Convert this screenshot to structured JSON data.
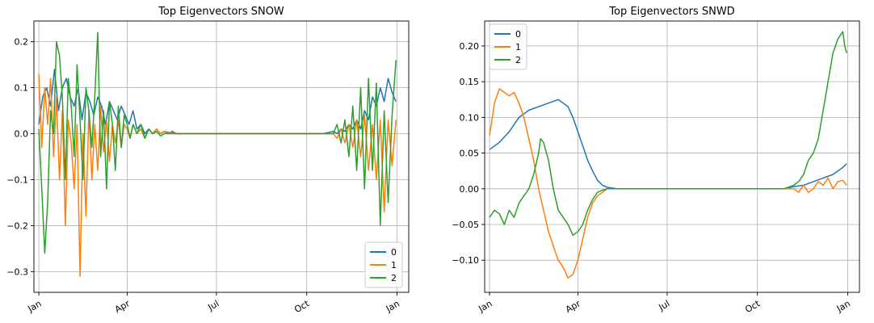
{
  "chart_data": [
    {
      "type": "line",
      "title": "Top Eigenvectors SNOW",
      "xlabel": "",
      "ylabel": "",
      "x_ticks": [
        "Jan",
        "Apr",
        "Jul",
        "Oct",
        "Jan"
      ],
      "x_tick_days": [
        0,
        90,
        181,
        273,
        365
      ],
      "xlim": [
        -5,
        377
      ],
      "ylim": [
        -0.345,
        0.245
      ],
      "yticks": [
        -0.3,
        -0.2,
        -0.1,
        0.0,
        0.1,
        0.2
      ],
      "ytick_labels": [
        "−0.3",
        "−0.2",
        "−0.1",
        "0.0",
        "0.1",
        "0.2"
      ],
      "grid": true,
      "legend": "lower-right",
      "series": [
        {
          "name": "0",
          "color": "#1f77b4",
          "x": [
            0,
            4,
            8,
            12,
            16,
            20,
            24,
            28,
            32,
            36,
            40,
            44,
            48,
            52,
            56,
            60,
            64,
            68,
            72,
            76,
            80,
            84,
            88,
            92,
            96,
            100,
            104,
            108,
            112,
            116,
            120,
            124,
            128,
            132,
            136,
            140,
            150,
            160,
            180,
            200,
            220,
            240,
            260,
            280,
            290,
            300,
            304,
            308,
            312,
            316,
            320,
            324,
            328,
            332,
            336,
            340,
            344,
            348,
            352,
            356,
            360,
            364
          ],
          "y": [
            0.02,
            0.08,
            0.1,
            0.06,
            0.14,
            0.05,
            0.1,
            0.12,
            0.08,
            0.06,
            0.1,
            0.03,
            0.09,
            0.07,
            0.04,
            0.08,
            0.06,
            0.02,
            0.07,
            0.05,
            0.03,
            0.06,
            0.04,
            0.02,
            0.05,
            0.01,
            0.02,
            0.0,
            0.01,
            0.0,
            0.01,
            0.0,
            0.005,
            0.0,
            0.005,
            0.0,
            0.0,
            0.0,
            0.0,
            0.0,
            0.0,
            0.0,
            0.0,
            0.0,
            0.0,
            0.005,
            0.0,
            0.01,
            0.005,
            0.02,
            0.01,
            0.03,
            0.01,
            0.05,
            0.03,
            0.08,
            0.06,
            0.1,
            0.07,
            0.12,
            0.09,
            0.07
          ]
        },
        {
          "name": "1",
          "color": "#ff7f0e",
          "x": [
            0,
            3,
            6,
            9,
            12,
            15,
            18,
            21,
            24,
            27,
            30,
            33,
            36,
            39,
            42,
            45,
            48,
            51,
            54,
            57,
            60,
            63,
            66,
            69,
            72,
            75,
            78,
            81,
            84,
            87,
            90,
            93,
            96,
            100,
            104,
            108,
            112,
            116,
            120,
            124,
            128,
            140,
            160,
            180,
            200,
            220,
            240,
            260,
            280,
            290,
            300,
            304,
            308,
            312,
            316,
            320,
            324,
            328,
            332,
            336,
            340,
            344,
            348,
            352,
            356,
            360,
            364
          ],
          "y": [
            0.13,
            -0.03,
            0.1,
            0.02,
            0.12,
            -0.05,
            0.08,
            -0.1,
            0.05,
            -0.2,
            0.03,
            -0.02,
            -0.12,
            0.02,
            -0.31,
            0.0,
            -0.18,
            0.05,
            -0.1,
            0.02,
            -0.08,
            0.06,
            -0.04,
            0.03,
            -0.06,
            0.02,
            -0.02,
            0.03,
            -0.03,
            0.02,
            0.01,
            -0.01,
            0.02,
            0.0,
            0.01,
            -0.01,
            0.01,
            0.0,
            0.01,
            0.0,
            0.005,
            0.0,
            0.0,
            0.0,
            0.0,
            0.0,
            0.0,
            0.0,
            0.0,
            0.0,
            0.0,
            -0.01,
            0.01,
            -0.02,
            0.02,
            -0.03,
            0.03,
            -0.05,
            0.04,
            -0.08,
            0.02,
            -0.1,
            0.03,
            -0.17,
            0.03,
            -0.07,
            0.03
          ]
        },
        {
          "name": "2",
          "color": "#2ca02c",
          "x": [
            0,
            3,
            6,
            9,
            12,
            15,
            18,
            21,
            24,
            27,
            30,
            33,
            36,
            39,
            42,
            45,
            48,
            51,
            54,
            57,
            60,
            63,
            66,
            69,
            72,
            75,
            78,
            81,
            84,
            87,
            90,
            93,
            96,
            100,
            104,
            108,
            112,
            116,
            120,
            124,
            128,
            140,
            160,
            180,
            200,
            220,
            240,
            260,
            280,
            290,
            300,
            304,
            308,
            312,
            316,
            320,
            324,
            328,
            332,
            336,
            340,
            344,
            348,
            352,
            356,
            360,
            364
          ],
          "y": [
            0.01,
            -0.12,
            -0.26,
            -0.15,
            0.05,
            0.0,
            0.2,
            0.17,
            0.08,
            -0.1,
            0.12,
            0.06,
            -0.05,
            0.15,
            0.03,
            -0.1,
            0.1,
            0.05,
            -0.03,
            0.08,
            0.22,
            -0.05,
            0.05,
            -0.12,
            0.07,
            0.02,
            -0.08,
            0.06,
            -0.03,
            0.04,
            0.02,
            -0.01,
            0.02,
            0.0,
            0.02,
            -0.01,
            0.01,
            0.0,
            0.005,
            -0.005,
            0.0,
            0.0,
            0.0,
            0.0,
            0.0,
            0.0,
            0.0,
            0.0,
            0.0,
            0.0,
            0.0,
            0.02,
            -0.02,
            0.03,
            -0.05,
            0.06,
            -0.08,
            0.1,
            -0.12,
            0.12,
            -0.08,
            0.11,
            -0.2,
            0.05,
            -0.15,
            0.04,
            0.16
          ]
        }
      ]
    },
    {
      "type": "line",
      "title": "Top Eigenvectors SNWD",
      "xlabel": "",
      "ylabel": "",
      "x_ticks": [
        "Jan",
        "Apr",
        "Jul",
        "Oct",
        "Jan"
      ],
      "x_tick_days": [
        0,
        90,
        181,
        273,
        365
      ],
      "xlim": [
        -5,
        377
      ],
      "ylim": [
        -0.145,
        0.235
      ],
      "yticks": [
        -0.1,
        -0.05,
        0.0,
        0.05,
        0.1,
        0.15,
        0.2
      ],
      "ytick_labels": [
        "−0.10",
        "−0.05",
        "0.00",
        "0.05",
        "0.10",
        "0.15",
        "0.20"
      ],
      "grid": true,
      "legend": "upper-left",
      "series": [
        {
          "name": "0",
          "color": "#1f77b4",
          "x": [
            0,
            10,
            20,
            30,
            40,
            50,
            60,
            70,
            75,
            80,
            85,
            90,
            95,
            100,
            105,
            110,
            115,
            120,
            130,
            140,
            160,
            200,
            240,
            280,
            300,
            310,
            320,
            330,
            340,
            350,
            360,
            364
          ],
          "y": [
            0.055,
            0.065,
            0.08,
            0.1,
            0.11,
            0.115,
            0.12,
            0.125,
            0.12,
            0.115,
            0.1,
            0.08,
            0.06,
            0.04,
            0.025,
            0.012,
            0.005,
            0.002,
            0.0,
            0.0,
            0.0,
            0.0,
            0.0,
            0.0,
            0.0,
            0.003,
            0.005,
            0.01,
            0.015,
            0.02,
            0.03,
            0.035
          ]
        },
        {
          "name": "1",
          "color": "#ff7f0e",
          "x": [
            0,
            5,
            10,
            15,
            20,
            25,
            30,
            35,
            40,
            45,
            50,
            55,
            60,
            65,
            70,
            75,
            80,
            85,
            90,
            95,
            100,
            105,
            110,
            115,
            120,
            130,
            140,
            160,
            200,
            240,
            280,
            300,
            310,
            315,
            320,
            325,
            330,
            335,
            340,
            345,
            350,
            355,
            360,
            364
          ],
          "y": [
            0.075,
            0.12,
            0.14,
            0.135,
            0.13,
            0.135,
            0.12,
            0.1,
            0.07,
            0.04,
            0.0,
            -0.03,
            -0.06,
            -0.08,
            -0.1,
            -0.11,
            -0.125,
            -0.12,
            -0.1,
            -0.07,
            -0.04,
            -0.02,
            -0.01,
            -0.005,
            0.0,
            0.0,
            0.0,
            0.0,
            0.0,
            0.0,
            0.0,
            0.0,
            0.0,
            -0.005,
            0.005,
            -0.005,
            0.0,
            0.01,
            0.005,
            0.015,
            0.0,
            0.01,
            0.012,
            0.005
          ]
        },
        {
          "name": "2",
          "color": "#2ca02c",
          "x": [
            0,
            5,
            10,
            15,
            20,
            25,
            30,
            35,
            40,
            45,
            50,
            52,
            55,
            60,
            65,
            70,
            75,
            80,
            85,
            90,
            95,
            100,
            105,
            110,
            115,
            120,
            130,
            140,
            160,
            200,
            240,
            280,
            300,
            310,
            315,
            320,
            325,
            330,
            335,
            340,
            345,
            350,
            355,
            360,
            362,
            364
          ],
          "y": [
            -0.04,
            -0.03,
            -0.035,
            -0.05,
            -0.03,
            -0.04,
            -0.02,
            -0.01,
            0.0,
            0.02,
            0.05,
            0.07,
            0.065,
            0.04,
            0.0,
            -0.03,
            -0.04,
            -0.05,
            -0.065,
            -0.06,
            -0.05,
            -0.03,
            -0.015,
            -0.005,
            -0.002,
            0.0,
            0.0,
            0.0,
            0.0,
            0.0,
            0.0,
            0.0,
            0.0,
            0.005,
            0.01,
            0.02,
            0.04,
            0.05,
            0.07,
            0.11,
            0.15,
            0.19,
            0.21,
            0.22,
            0.2,
            0.19
          ]
        }
      ]
    }
  ]
}
